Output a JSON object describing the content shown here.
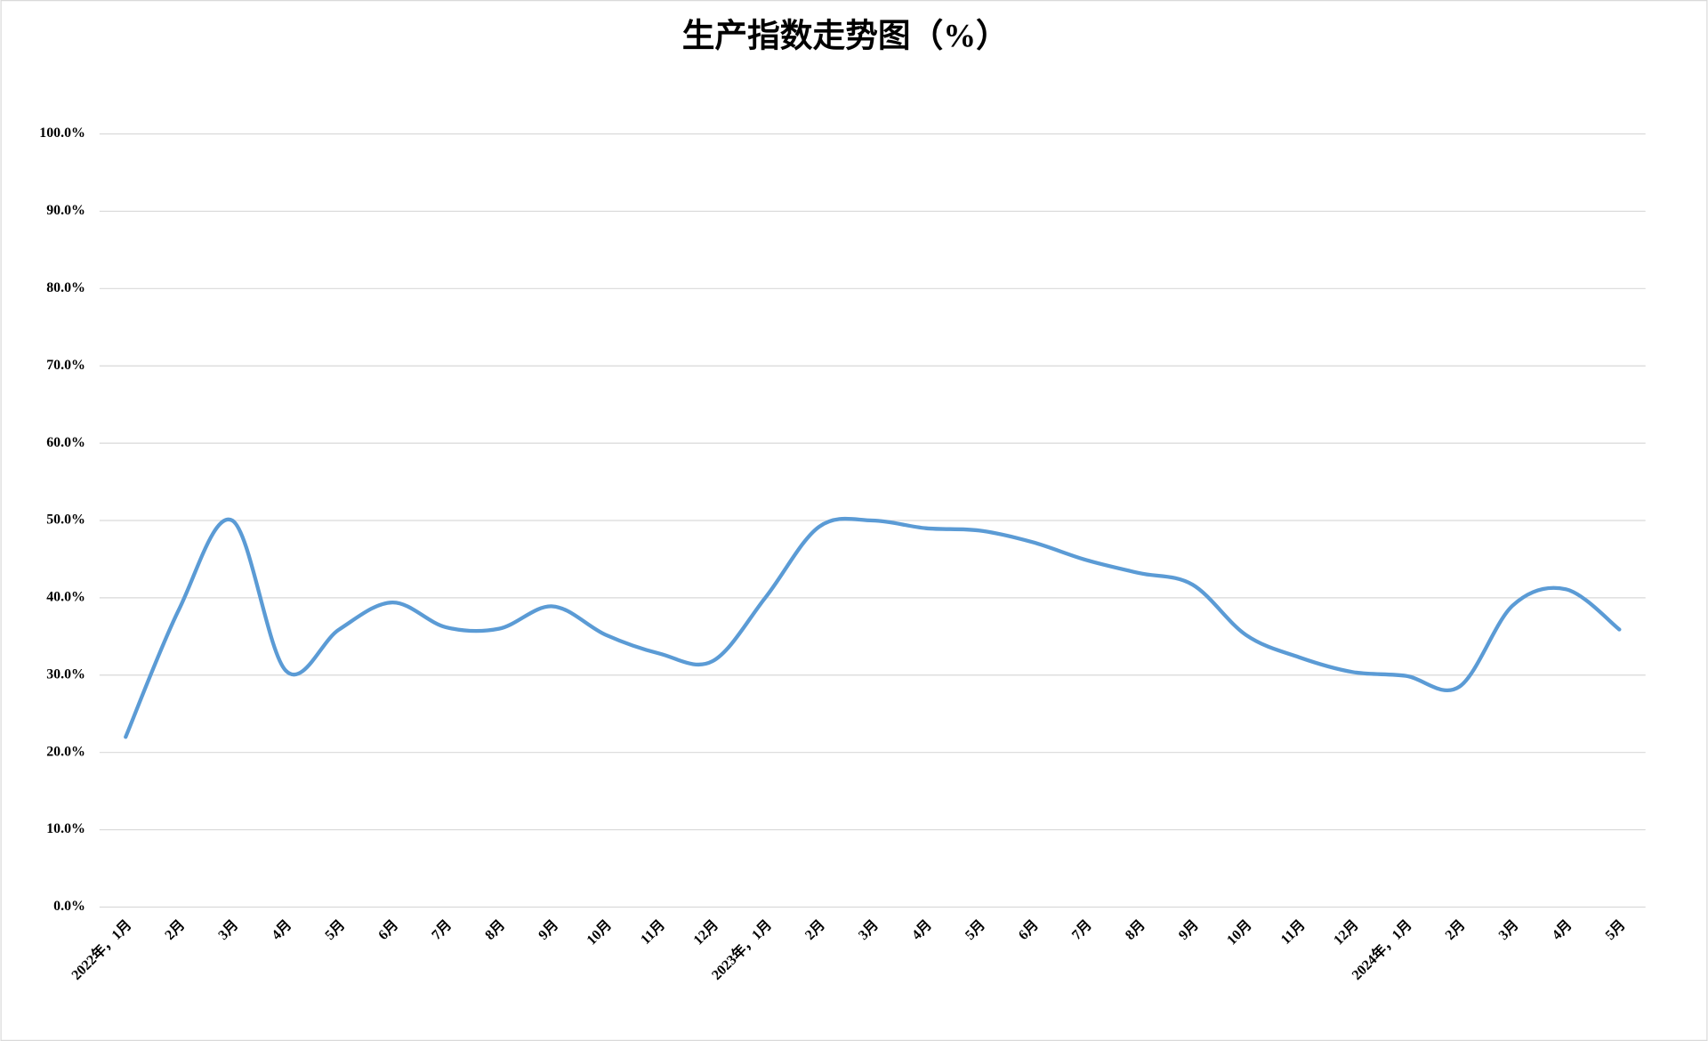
{
  "chart_data": {
    "type": "line",
    "title": "生产指数走势图（%）",
    "categories": [
      "2022年，1月",
      "2月",
      "3月",
      "4月",
      "5月",
      "6月",
      "7月",
      "8月",
      "9月",
      "10月",
      "11月",
      "12月",
      "2023年，1月",
      "2月",
      "3月",
      "4月",
      "5月",
      "6月",
      "7月",
      "8月",
      "9月",
      "10月",
      "11月",
      "12月",
      "2024年，1月",
      "2月",
      "3月",
      "4月",
      "5月"
    ],
    "series": [
      {
        "color": "#5b9bd5",
        "values": [
          22,
          38.5,
          50,
          30.6,
          35.9,
          39.4,
          36.2,
          36,
          38.9,
          35.2,
          32.8,
          31.8,
          40.1,
          49.2,
          50,
          49,
          48.7,
          47.2,
          44.9,
          43.2,
          41.7,
          35.2,
          32.3,
          30.4,
          29.9,
          28.5,
          39,
          41.1,
          35.9
        ]
      }
    ],
    "ylim": [
      0,
      100
    ],
    "yticks": [
      {
        "value": 0,
        "label": "0.0%"
      },
      {
        "value": 10,
        "label": "10.0%"
      },
      {
        "value": 20,
        "label": "20.0%"
      },
      {
        "value": 30,
        "label": "30.0%"
      },
      {
        "value": 40,
        "label": "40.0%"
      },
      {
        "value": 50,
        "label": "50.0%"
      },
      {
        "value": 60,
        "label": "60.0%"
      },
      {
        "value": 70,
        "label": "70.0%"
      },
      {
        "value": 80,
        "label": "80.0%"
      },
      {
        "value": 90,
        "label": "90.0%"
      },
      {
        "value": 100,
        "label": "100.0%"
      }
    ],
    "grid": true,
    "smooth": true
  }
}
